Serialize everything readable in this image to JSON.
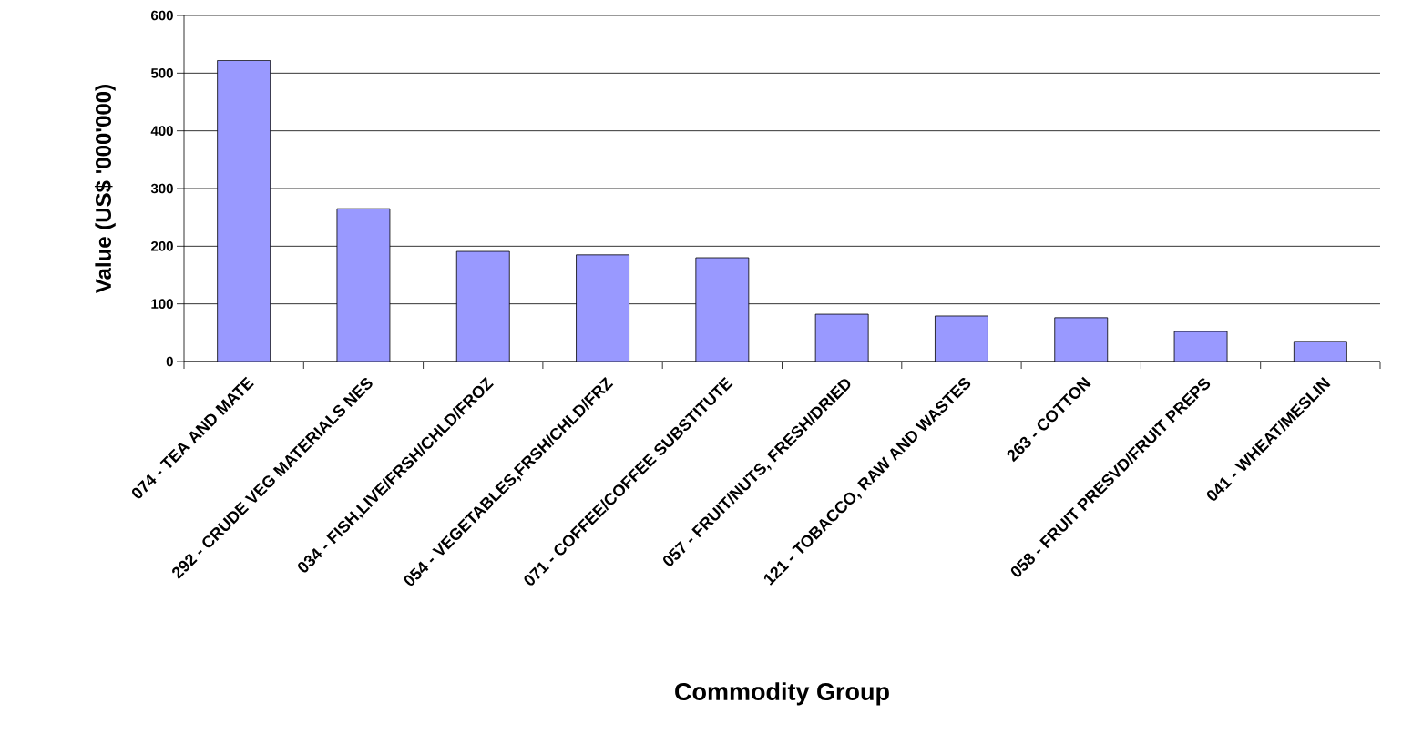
{
  "chart_data": {
    "type": "bar",
    "xlabel": "Commodity Group",
    "ylabel": "Value (US$ '000'000)",
    "categories": [
      "074 - TEA AND MATE",
      "292 - CRUDE VEG MATERIALS NES",
      "034 - FISH,LIVE/FRSH/CHLD/FROZ",
      "054 - VEGETABLES,FRSH/CHLD/FRZ",
      "071 - COFFEE/COFFEE SUBSTITUTE",
      "057 - FRUIT/NUTS, FRESH/DRIED",
      "121 - TOBACCO, RAW AND WASTES",
      "263 - COTTON",
      "058 - FRUIT PRESVD/FRUIT PREPS",
      "041 - WHEAT/MESLIN"
    ],
    "values": [
      522,
      265,
      191,
      185,
      180,
      82,
      79,
      76,
      52,
      35
    ],
    "color": "#9999ff",
    "ylim": [
      0,
      600
    ],
    "yticks": [
      0,
      100,
      200,
      300,
      400,
      500,
      600
    ],
    "grid": "y"
  }
}
